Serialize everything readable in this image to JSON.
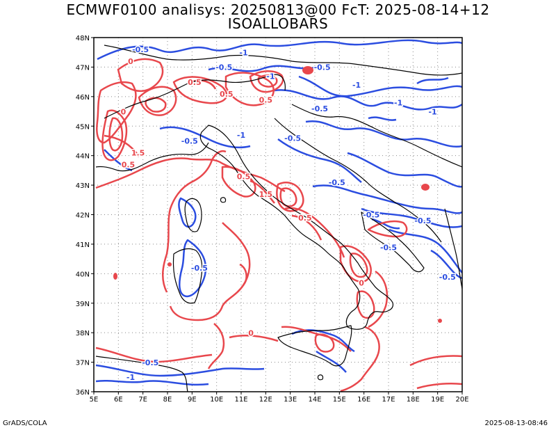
{
  "title": {
    "line1": "ECMWF0100 analisys: 20250813@00 FcT: 2025-08-14+12",
    "line2": "ISOALLOBARS"
  },
  "footer": {
    "left": "GrADS/COLA",
    "right": "2025-08-13-08:46"
  },
  "axes": {
    "lon_labels": [
      "5E",
      "6E",
      "7E",
      "8E",
      "9E",
      "10E",
      "11E",
      "12E",
      "13E",
      "14E",
      "15E",
      "16E",
      "17E",
      "18E",
      "19E",
      "20E"
    ],
    "lat_labels": [
      "36N",
      "37N",
      "38N",
      "39N",
      "40N",
      "41N",
      "42N",
      "43N",
      "44N",
      "45N",
      "46N",
      "47N",
      "48N"
    ]
  },
  "colors": {
    "positive_contours": "#e8474c",
    "negative_contours": "#2b4de0",
    "coastline": "#000000",
    "grid": "#888888"
  },
  "contour_labels": [
    {
      "text": "-0.5",
      "color": "negative",
      "lon": 6.9,
      "lat": 47.5
    },
    {
      "text": "-1",
      "color": "negative",
      "lon": 11.1,
      "lat": 47.4
    },
    {
      "text": "-0.5",
      "color": "negative",
      "lon": 10.3,
      "lat": 46.9
    },
    {
      "text": "-1",
      "color": "negative",
      "lon": 12.2,
      "lat": 46.6
    },
    {
      "text": "-0.5",
      "color": "negative",
      "lon": 14.3,
      "lat": 46.9
    },
    {
      "text": "-1",
      "color": "negative",
      "lon": 15.7,
      "lat": 46.3
    },
    {
      "text": "-1",
      "color": "negative",
      "lon": 17.4,
      "lat": 45.7
    },
    {
      "text": "-1",
      "color": "negative",
      "lon": 18.8,
      "lat": 45.4
    },
    {
      "text": "-0.5",
      "color": "negative",
      "lon": 14.2,
      "lat": 45.5
    },
    {
      "text": "-0.5",
      "color": "negative",
      "lon": 13.1,
      "lat": 44.5
    },
    {
      "text": "-1",
      "color": "negative",
      "lon": 11.0,
      "lat": 44.6
    },
    {
      "text": "-0.5",
      "color": "negative",
      "lon": 8.9,
      "lat": 44.4
    },
    {
      "text": "-0.5",
      "color": "negative",
      "lon": 14.9,
      "lat": 43.0
    },
    {
      "text": "-0.5",
      "color": "negative",
      "lon": 16.3,
      "lat": 41.9
    },
    {
      "text": "-0.5",
      "color": "negative",
      "lon": 18.4,
      "lat": 41.7
    },
    {
      "text": "-0.5",
      "color": "negative",
      "lon": 17.0,
      "lat": 40.8
    },
    {
      "text": "-0.5",
      "color": "negative",
      "lon": 9.3,
      "lat": 40.1
    },
    {
      "text": "-0.5",
      "color": "negative",
      "lon": 19.4,
      "lat": 39.8
    },
    {
      "text": "-0.5",
      "color": "negative",
      "lon": 7.3,
      "lat": 36.9
    },
    {
      "text": "-1",
      "color": "negative",
      "lon": 6.5,
      "lat": 36.4
    },
    {
      "text": "0",
      "color": "positive",
      "lon": 6.5,
      "lat": 47.1
    },
    {
      "text": "0.5",
      "color": "positive",
      "lon": 9.1,
      "lat": 46.4
    },
    {
      "text": "0.5",
      "color": "positive",
      "lon": 10.4,
      "lat": 46.0
    },
    {
      "text": "0.5",
      "color": "positive",
      "lon": 12.0,
      "lat": 45.8
    },
    {
      "text": "0.5",
      "color": "positive",
      "lon": 6.4,
      "lat": 43.6
    },
    {
      "text": "1.5",
      "color": "positive",
      "lon": 6.8,
      "lat": 44.0
    },
    {
      "text": "0",
      "color": "positive",
      "lon": 6.2,
      "lat": 45.4
    },
    {
      "text": "0.5",
      "color": "positive",
      "lon": 11.1,
      "lat": 43.2
    },
    {
      "text": "1.5",
      "color": "positive",
      "lon": 12.0,
      "lat": 42.6
    },
    {
      "text": "0.5",
      "color": "positive",
      "lon": 13.6,
      "lat": 41.8
    },
    {
      "text": "0",
      "color": "positive",
      "lon": 11.4,
      "lat": 37.9
    },
    {
      "text": "0",
      "color": "positive",
      "lon": 15.9,
      "lat": 39.6
    }
  ]
}
